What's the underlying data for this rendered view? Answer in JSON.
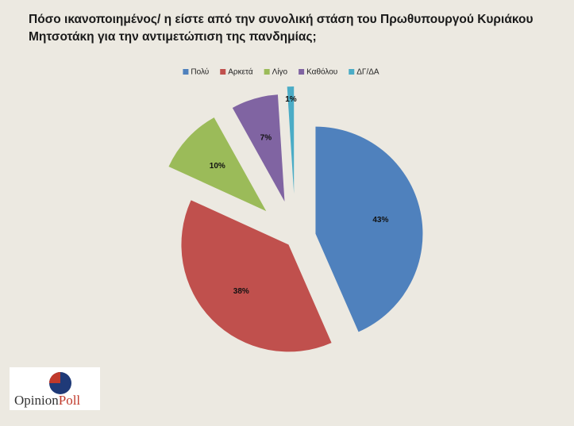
{
  "chart_data": {
    "type": "pie",
    "title": "Πόσο ικανοποιημένος/ η είστε από την συνολική στάση του Πρωθυπουργού Κυριάκου Μητσοτάκη για την αντιμετώπιση της πανδημίας;",
    "series": [
      {
        "name": "Πολύ",
        "color": "#4f81bd",
        "values": [
          43
        ],
        "value_labels": [
          "43%"
        ]
      },
      {
        "name": "Αρκετά",
        "color": "#c0504d",
        "values": [
          38
        ],
        "value_labels": [
          "38%"
        ]
      },
      {
        "name": "Λίγο",
        "color": "#9bbb59",
        "values": [
          10
        ],
        "value_labels": [
          "10%"
        ]
      },
      {
        "name": "Καθόλου",
        "color": "#8064a2",
        "values": [
          7
        ],
        "value_labels": [
          "7%"
        ]
      },
      {
        "name": "ΔΓ/ΔΑ",
        "color": "#4bacc6",
        "values": [
          1
        ],
        "value_labels": [
          "1%"
        ]
      }
    ],
    "legend": "top"
  },
  "logo": [
    "Opinion",
    "Poll"
  ]
}
